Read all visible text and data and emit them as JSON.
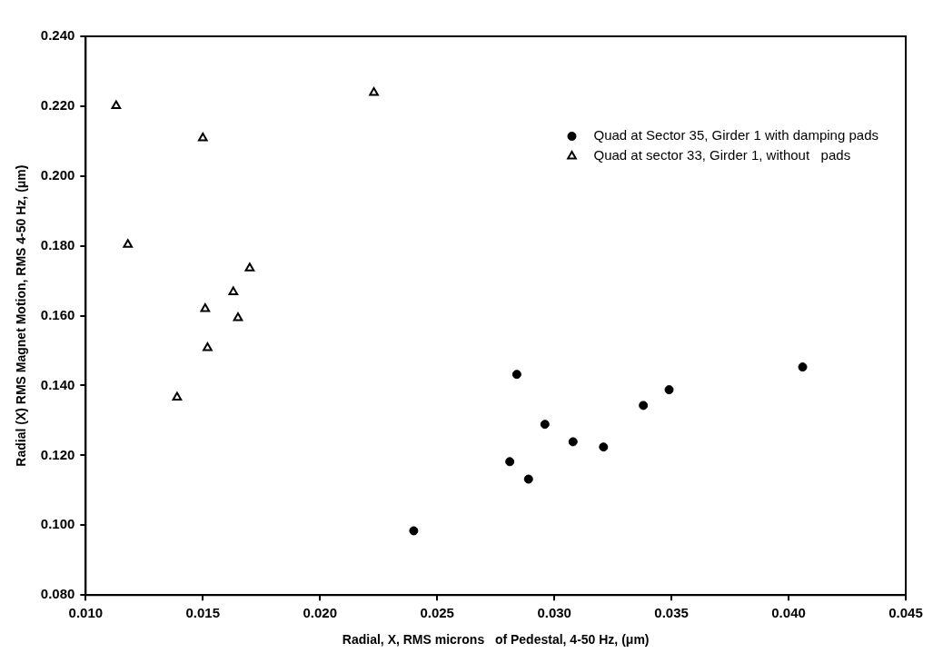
{
  "chart_data": {
    "type": "scatter",
    "xlabel": "Radial, X, RMS microns   of Pedestal, 4-50 Hz, (μm)",
    "ylabel": "Radial (X) RMS Magnet Motion, RMS 4-50 Hz, (μm)",
    "xlim": [
      0.01,
      0.045
    ],
    "xticks": [
      {
        "value": 0.01,
        "label": "0.010"
      },
      {
        "value": 0.015,
        "label": "0.015"
      },
      {
        "value": 0.02,
        "label": "0.020"
      },
      {
        "value": 0.025,
        "label": "0.025"
      },
      {
        "value": 0.03,
        "label": "0.030"
      },
      {
        "value": 0.035,
        "label": "0.035"
      },
      {
        "value": 0.04,
        "label": "0.040"
      },
      {
        "value": 0.045,
        "label": "0.045"
      }
    ],
    "ylim": [
      0.08,
      0.24
    ],
    "yticks": [
      {
        "value": 0.08,
        "label": "0.080"
      },
      {
        "value": 0.1,
        "label": "0.100"
      },
      {
        "value": 0.12,
        "label": "0.120"
      },
      {
        "value": 0.14,
        "label": "0.140"
      },
      {
        "value": 0.16,
        "label": "0.160"
      },
      {
        "value": 0.18,
        "label": "0.180"
      },
      {
        "value": 0.2,
        "label": "0.200"
      },
      {
        "value": 0.22,
        "label": "0.220"
      },
      {
        "value": 0.24,
        "label": "0.240"
      }
    ],
    "grid": false,
    "legend": "top right",
    "series": [
      {
        "name": "Quad at Sector 35, Girder 1 with damping pads",
        "color": "#000000",
        "marker": "circle",
        "x": [
          0.024,
          0.0281,
          0.0284,
          0.0289,
          0.0296,
          0.0308,
          0.0321,
          0.0338,
          0.0349,
          0.0406
        ],
        "values": [
          0.0984,
          0.1182,
          0.1432,
          0.1132,
          0.1289,
          0.1239,
          0.1224,
          0.1343,
          0.1388,
          0.1453
        ]
      },
      {
        "name": "Quad at sector 33, Girder 1, without   pads",
        "color": "#000000",
        "marker": "triangle",
        "x": [
          0.0113,
          0.015,
          0.0118,
          0.017,
          0.0163,
          0.0151,
          0.0165,
          0.0152,
          0.0139,
          0.0223
        ],
        "values": [
          0.2201,
          0.2109,
          0.1804,
          0.1736,
          0.1668,
          0.162,
          0.1594,
          0.1508,
          0.1366,
          0.2239
        ]
      }
    ]
  }
}
